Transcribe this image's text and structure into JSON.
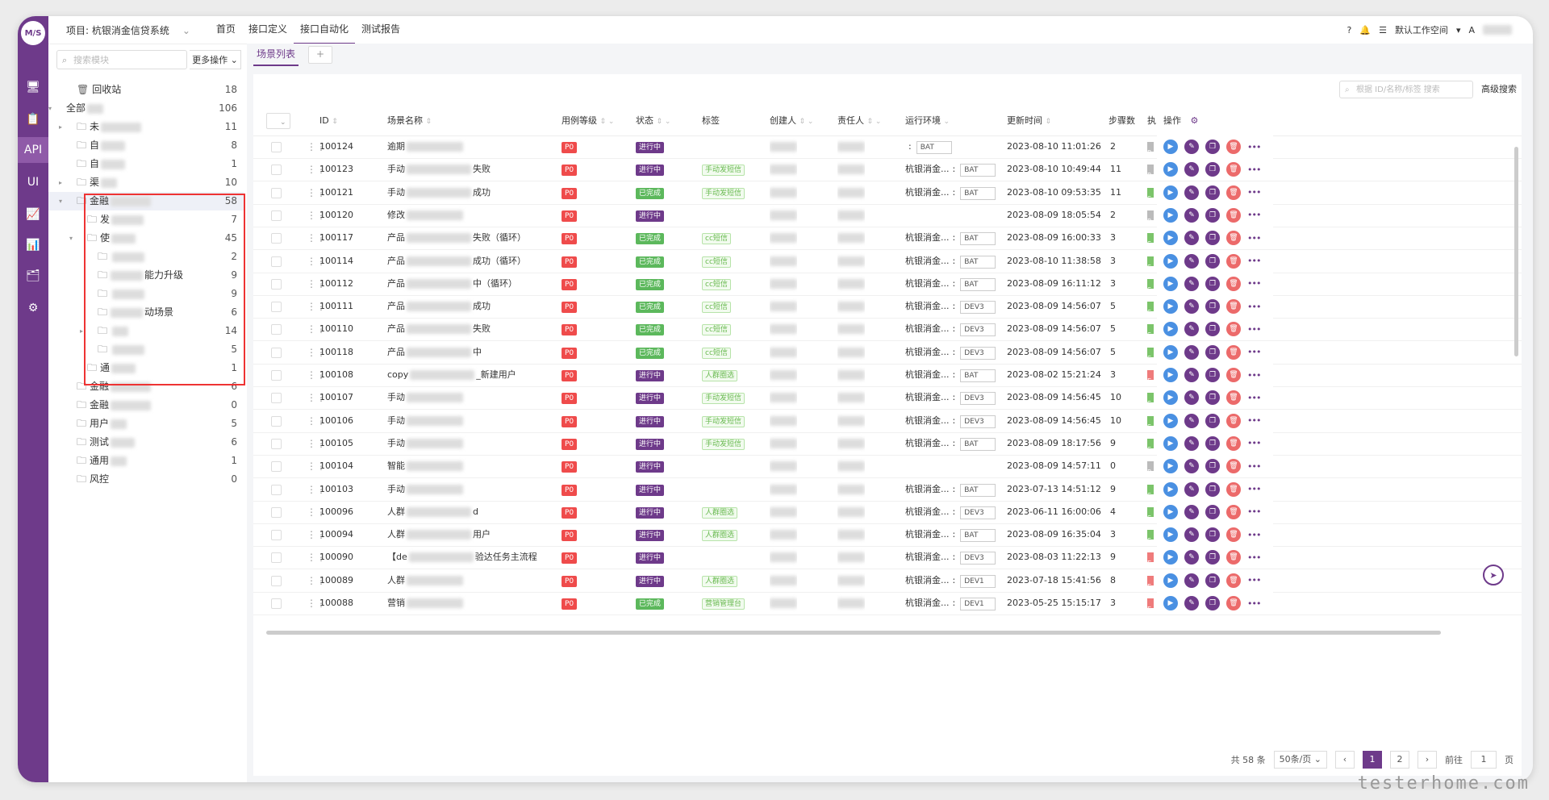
{
  "app": {
    "logo": "M/S",
    "project_label": "项目: 杭银消金信贷系统",
    "nav": [
      "首页",
      "接口定义",
      "接口自动化",
      "测试报告"
    ],
    "nav_active": 2,
    "workspace": "默认工作空间"
  },
  "sidebar": {
    "search_placeholder": "搜索模块",
    "more_label": "更多操作",
    "tree": [
      {
        "label": "回收站",
        "count": "18",
        "icon": "trash-icon",
        "level": 1,
        "blur": 0
      },
      {
        "label": "全部",
        "count": "106",
        "icon": "",
        "level": 0,
        "blur": 20,
        "arrow": "▾"
      },
      {
        "label": "未",
        "count": "11",
        "icon": "folder-icon",
        "level": 1,
        "blur": 50,
        "arrow": "▸"
      },
      {
        "label": "自",
        "count": "8",
        "icon": "folder-icon",
        "level": 1,
        "blur": 30
      },
      {
        "label": "自",
        "count": "1",
        "icon": "folder-icon",
        "level": 1,
        "blur": 30
      },
      {
        "label": "渠",
        "count": "10",
        "icon": "folder-icon",
        "level": 1,
        "blur": 20,
        "arrow": "▸"
      },
      {
        "label": "金融",
        "count": "58",
        "icon": "folder-icon",
        "level": 1,
        "blur": 50,
        "arrow": "▾",
        "sel": true
      },
      {
        "label": "发",
        "count": "7",
        "icon": "folder-icon",
        "level": 2,
        "blur": 40
      },
      {
        "label": "使",
        "count": "45",
        "icon": "folder-icon",
        "level": 2,
        "blur": 30,
        "arrow": "▾"
      },
      {
        "label": "",
        "count": "2",
        "icon": "folder-icon",
        "level": 3,
        "blur": 40
      },
      {
        "label": "能力升级",
        "count": "9",
        "icon": "folder-icon",
        "level": 3,
        "blur": 40,
        "blur_first": true
      },
      {
        "label": "",
        "count": "9",
        "icon": "folder-icon",
        "level": 3,
        "blur": 40
      },
      {
        "label": "动场景",
        "count": "6",
        "icon": "folder-icon",
        "level": 3,
        "blur": 40,
        "blur_first": true
      },
      {
        "label": "",
        "count": "14",
        "icon": "folder-icon",
        "level": 3,
        "blur": 20,
        "arrow": "▸"
      },
      {
        "label": "",
        "count": "5",
        "icon": "folder-icon",
        "level": 3,
        "blur": 40
      },
      {
        "label": "通",
        "count": "1",
        "icon": "folder-icon",
        "level": 2,
        "blur": 30
      },
      {
        "label": "金融",
        "count": "6",
        "icon": "folder-icon",
        "level": 1,
        "blur": 50
      },
      {
        "label": "金融",
        "count": "0",
        "icon": "folder-icon",
        "level": 1,
        "blur": 50
      },
      {
        "label": "用户",
        "count": "5",
        "icon": "folder-icon",
        "level": 1,
        "blur": 20
      },
      {
        "label": "测试",
        "count": "6",
        "icon": "folder-icon",
        "level": 1,
        "blur": 30
      },
      {
        "label": "通用",
        "count": "1",
        "icon": "folder-icon",
        "level": 1,
        "blur": 20
      },
      {
        "label": "风控",
        "count": "0",
        "icon": "folder-icon",
        "level": 1,
        "blur": 0
      }
    ]
  },
  "tabs": {
    "active": "场景列表",
    "add": "+"
  },
  "toolbar": {
    "search_placeholder": "根据 ID/名称/标签 搜索",
    "advanced_search": "高级搜索"
  },
  "table": {
    "columns": [
      "ID",
      "场景名称",
      "用例等级",
      "状态",
      "标签",
      "创建人",
      "责任人",
      "运行环境",
      "更新时间",
      "步骤数",
      "执",
      "操作"
    ],
    "rows": [
      {
        "id": "100124",
        "name": "逾期",
        "suffix": "",
        "level": "P0",
        "status": "进行中",
        "tag": "",
        "env": "",
        "envtag": "BAT",
        "time": "2023-08-10 11:01:26",
        "steps": "2",
        "ex": "P"
      },
      {
        "id": "100123",
        "name": "手动",
        "suffix": "失败",
        "level": "P0",
        "status": "进行中",
        "tag": "手动发短信",
        "env": "杭银消金...",
        "envtag": "BAT",
        "time": "2023-08-10 10:49:44",
        "steps": "11",
        "ex": "P"
      },
      {
        "id": "100121",
        "name": "手动",
        "suffix": "成功",
        "level": "P0",
        "status": "已完成",
        "tag": "手动发短信",
        "env": "杭银消金...",
        "envtag": "BAT",
        "time": "2023-08-10 09:53:35",
        "steps": "11",
        "ex": "S"
      },
      {
        "id": "100120",
        "name": "修改",
        "suffix": "",
        "level": "P0",
        "status": "进行中",
        "tag": "",
        "env": "",
        "envtag": "",
        "time": "2023-08-09 18:05:54",
        "steps": "2",
        "ex": "P"
      },
      {
        "id": "100117",
        "name": "产品",
        "suffix": "失败（循环）",
        "level": "P0",
        "status": "已完成",
        "tag": "cc短信",
        "env": "杭银消金...",
        "envtag": "BAT",
        "time": "2023-08-09 16:00:33",
        "steps": "3",
        "ex": "S"
      },
      {
        "id": "100114",
        "name": "产品",
        "suffix": "成功（循环）",
        "level": "P0",
        "status": "已完成",
        "tag": "cc短信",
        "env": "杭银消金...",
        "envtag": "BAT",
        "time": "2023-08-10 11:38:58",
        "steps": "3",
        "ex": "S"
      },
      {
        "id": "100112",
        "name": "产品",
        "suffix": "中（循环）",
        "level": "P0",
        "status": "已完成",
        "tag": "cc短信",
        "env": "杭银消金...",
        "envtag": "BAT",
        "time": "2023-08-09 16:11:12",
        "steps": "3",
        "ex": "S"
      },
      {
        "id": "100111",
        "name": "产品",
        "suffix": "成功",
        "level": "P0",
        "status": "已完成",
        "tag": "cc短信",
        "env": "杭银消金...",
        "envtag": "DEV3",
        "time": "2023-08-09 14:56:07",
        "steps": "5",
        "ex": "S"
      },
      {
        "id": "100110",
        "name": "产品",
        "suffix": "失败",
        "level": "P0",
        "status": "已完成",
        "tag": "cc短信",
        "env": "杭银消金...",
        "envtag": "DEV3",
        "time": "2023-08-09 14:56:07",
        "steps": "5",
        "ex": "S"
      },
      {
        "id": "100118",
        "name": "产品",
        "suffix": "中",
        "level": "P0",
        "status": "已完成",
        "tag": "cc短信",
        "env": "杭银消金...",
        "envtag": "DEV3",
        "time": "2023-08-09 14:56:07",
        "steps": "5",
        "ex": "S"
      },
      {
        "id": "100108",
        "name": "copy",
        "suffix": "_新建用户",
        "level": "P0",
        "status": "进行中",
        "tag": "人群圈选",
        "env": "杭银消金...",
        "envtag": "BAT",
        "time": "2023-08-02 15:21:24",
        "steps": "3",
        "ex": "E"
      },
      {
        "id": "100107",
        "name": "手动",
        "suffix": "",
        "level": "P0",
        "status": "进行中",
        "tag": "手动发短信",
        "env": "杭银消金...",
        "envtag": "DEV3",
        "time": "2023-08-09 14:56:45",
        "steps": "10",
        "ex": "S"
      },
      {
        "id": "100106",
        "name": "手动",
        "suffix": "",
        "level": "P0",
        "status": "进行中",
        "tag": "手动发短信",
        "env": "杭银消金...",
        "envtag": "DEV3",
        "time": "2023-08-09 14:56:45",
        "steps": "10",
        "ex": "S"
      },
      {
        "id": "100105",
        "name": "手动",
        "suffix": "",
        "level": "P0",
        "status": "进行中",
        "tag": "手动发短信",
        "env": "杭银消金...",
        "envtag": "BAT",
        "time": "2023-08-09 18:17:56",
        "steps": "9",
        "ex": "S"
      },
      {
        "id": "100104",
        "name": "智能",
        "suffix": "",
        "level": "P0",
        "status": "进行中",
        "tag": "",
        "env": "",
        "envtag": "",
        "time": "2023-08-09 14:57:11",
        "steps": "0",
        "ex": "P"
      },
      {
        "id": "100103",
        "name": "手动",
        "suffix": "",
        "level": "P0",
        "status": "进行中",
        "tag": "",
        "env": "杭银消金...",
        "envtag": "BAT",
        "time": "2023-07-13 14:51:12",
        "steps": "9",
        "ex": "S"
      },
      {
        "id": "100096",
        "name": "人群",
        "suffix": "d",
        "level": "P0",
        "status": "进行中",
        "tag": "人群圈选",
        "env": "杭银消金...",
        "envtag": "DEV3",
        "time": "2023-06-11 16:00:06",
        "steps": "4",
        "ex": "S"
      },
      {
        "id": "100094",
        "name": "人群",
        "suffix": "用户",
        "level": "P0",
        "status": "进行中",
        "tag": "人群圈选",
        "env": "杭银消金...",
        "envtag": "BAT",
        "time": "2023-08-09 16:35:04",
        "steps": "3",
        "ex": "S"
      },
      {
        "id": "100090",
        "name": "【de",
        "suffix": "验达任务主流程",
        "level": "P0",
        "status": "进行中",
        "tag": "",
        "env": "杭银消金...",
        "envtag": "DEV3",
        "time": "2023-08-03 11:22:13",
        "steps": "9",
        "ex": "E"
      },
      {
        "id": "100089",
        "name": "人群",
        "suffix": "",
        "level": "P0",
        "status": "进行中",
        "tag": "人群圈选",
        "env": "杭银消金...",
        "envtag": "DEV1",
        "time": "2023-07-18 15:41:56",
        "steps": "8",
        "ex": "E"
      },
      {
        "id": "100088",
        "name": "营销",
        "suffix": "",
        "level": "P0",
        "status": "已完成",
        "tag": "营销管理台",
        "env": "杭银消金...",
        "envtag": "DEV1",
        "time": "2023-05-25 15:15:17",
        "steps": "3",
        "ex": "E"
      }
    ]
  },
  "pagination": {
    "total": "共 58 条",
    "page_size": "50条/页",
    "pages": [
      "1",
      "2"
    ],
    "current": "1",
    "goto_label": "前往",
    "goto_value": "1",
    "page_suffix": "页"
  },
  "watermark": "testerhome.com",
  "colors": {
    "brand": "#6e3a8a",
    "running": "#6e3a8a",
    "done": "#5cb85c",
    "p0": "#ef4b4b"
  }
}
